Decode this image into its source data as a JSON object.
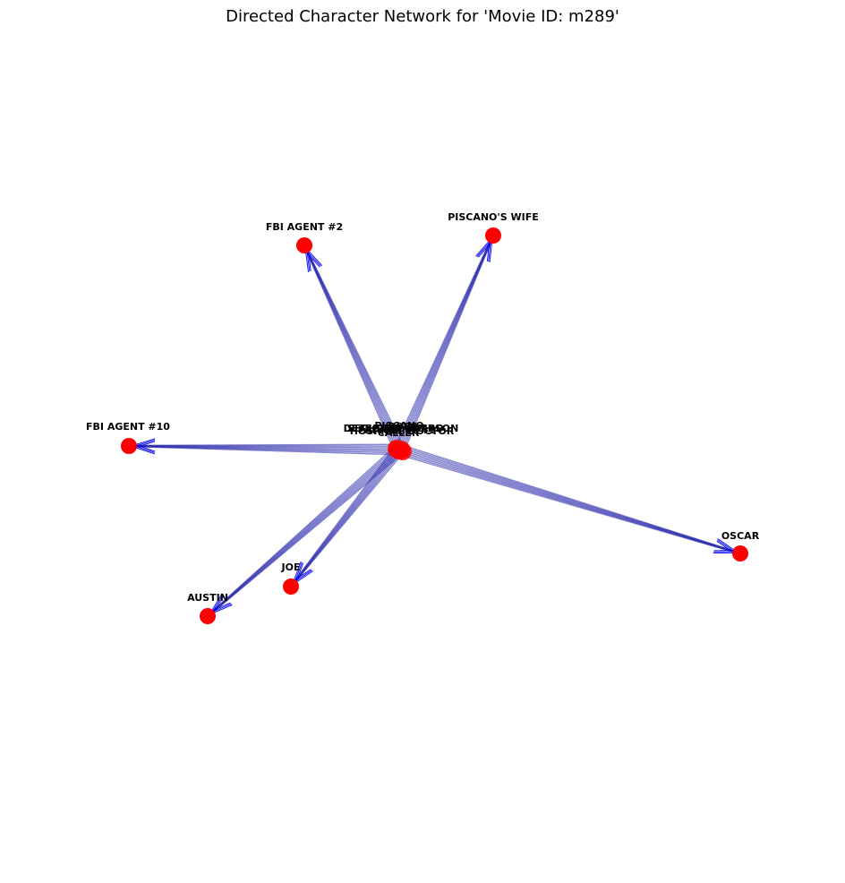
{
  "title": "Directed Character Network for 'Movie ID: m289'",
  "colors": {
    "node": "#ff0000",
    "edge": "#2222aa",
    "arrow": "#0000ee",
    "label": "#000000"
  },
  "hub": {
    "overlapping_labels": [
      "PISCANO",
      "DETECTIVE SIMPSON",
      "FBI AGENT #1",
      "BOSS",
      "CALLER",
      "HOSPITAL DOCTOR",
      "SECURITY GUARD"
    ]
  },
  "nodes": [
    {
      "id": "fbi-agent-2",
      "label": "FBI AGENT #2"
    },
    {
      "id": "piscanos-wife",
      "label": "PISCANO'S WIFE"
    },
    {
      "id": "fbi-agent-10",
      "label": "FBI AGENT #10"
    },
    {
      "id": "oscar",
      "label": "OSCAR"
    },
    {
      "id": "joe",
      "label": "JOE"
    },
    {
      "id": "austin",
      "label": "AUSTIN"
    }
  ],
  "edges": [
    {
      "from": "hub",
      "to": "fbi-agent-2"
    },
    {
      "from": "hub",
      "to": "piscanos-wife"
    },
    {
      "from": "hub",
      "to": "fbi-agent-10"
    },
    {
      "from": "hub",
      "to": "oscar"
    },
    {
      "from": "hub",
      "to": "joe"
    },
    {
      "from": "hub",
      "to": "austin"
    }
  ]
}
